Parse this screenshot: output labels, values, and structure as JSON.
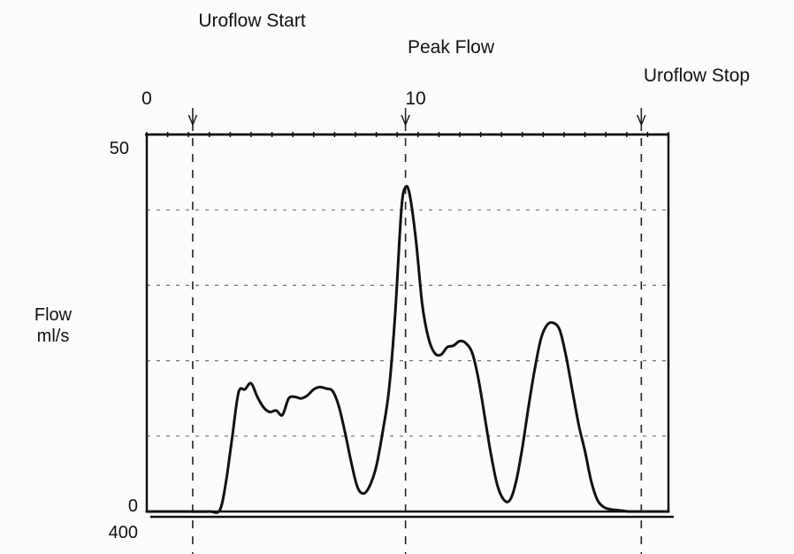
{
  "chart_data": {
    "type": "line",
    "title": "",
    "ylabel": "Flow\nml/s",
    "xlabel": "",
    "x_ticks": [
      0,
      10
    ],
    "y_ticks": [
      0,
      50
    ],
    "lower_panel_label": "400",
    "xlim": [
      0,
      25
    ],
    "ylim": [
      0,
      50
    ],
    "grid": true,
    "markers": [
      {
        "label": "Uroflow Start",
        "x": 2.2,
        "symbol": "V"
      },
      {
        "label": "Peak Flow",
        "x": 12.4,
        "symbol": "V"
      },
      {
        "label": "Uroflow Stop",
        "x": 23.7,
        "symbol": "V"
      }
    ],
    "series": [
      {
        "x": [
          0.0,
          1.0,
          2.0,
          3.0,
          3.5,
          3.8,
          4.1,
          4.4,
          4.7,
          5.0,
          5.3,
          5.6,
          5.9,
          6.2,
          6.5,
          6.8,
          7.1,
          7.4,
          7.7,
          8.0,
          8.3,
          8.6,
          8.9,
          9.2,
          9.5,
          9.8,
          10.1,
          10.4,
          10.7,
          11.0,
          11.3,
          11.6,
          11.9,
          12.2,
          12.4,
          12.6,
          12.9,
          13.2,
          13.5,
          13.8,
          14.1,
          14.4,
          14.7,
          15.0,
          15.3,
          15.6,
          15.9,
          16.2,
          16.5,
          16.8,
          17.1,
          17.4,
          17.7,
          18.0,
          18.3,
          18.6,
          18.9,
          19.2,
          19.5,
          19.8,
          20.1,
          20.4,
          20.7,
          21.0,
          21.3,
          21.6,
          21.9,
          22.2,
          22.5,
          22.8,
          23.1,
          23.4,
          23.7,
          24.2,
          25.0
        ],
        "y": [
          0.0,
          0.0,
          0.0,
          0.0,
          0.2,
          4.0,
          10.0,
          15.8,
          16.2,
          17.0,
          15.2,
          13.8,
          13.2,
          13.4,
          12.8,
          15.0,
          15.2,
          15.0,
          15.4,
          16.2,
          16.5,
          16.3,
          16.0,
          14.0,
          10.5,
          6.5,
          3.2,
          2.4,
          3.5,
          6.0,
          10.5,
          16.0,
          26.0,
          40.0,
          43.0,
          42.0,
          36.0,
          27.5,
          23.0,
          21.0,
          20.8,
          21.8,
          22.0,
          22.6,
          22.3,
          21.0,
          17.5,
          12.5,
          7.5,
          3.5,
          1.6,
          1.5,
          4.0,
          8.5,
          14.0,
          19.0,
          23.0,
          24.8,
          25.0,
          24.0,
          20.5,
          16.0,
          11.5,
          8.0,
          4.0,
          1.5,
          0.6,
          0.3,
          0.2,
          0.1,
          0.0,
          0.0,
          0.0,
          0.0,
          0.0
        ]
      }
    ]
  }
}
